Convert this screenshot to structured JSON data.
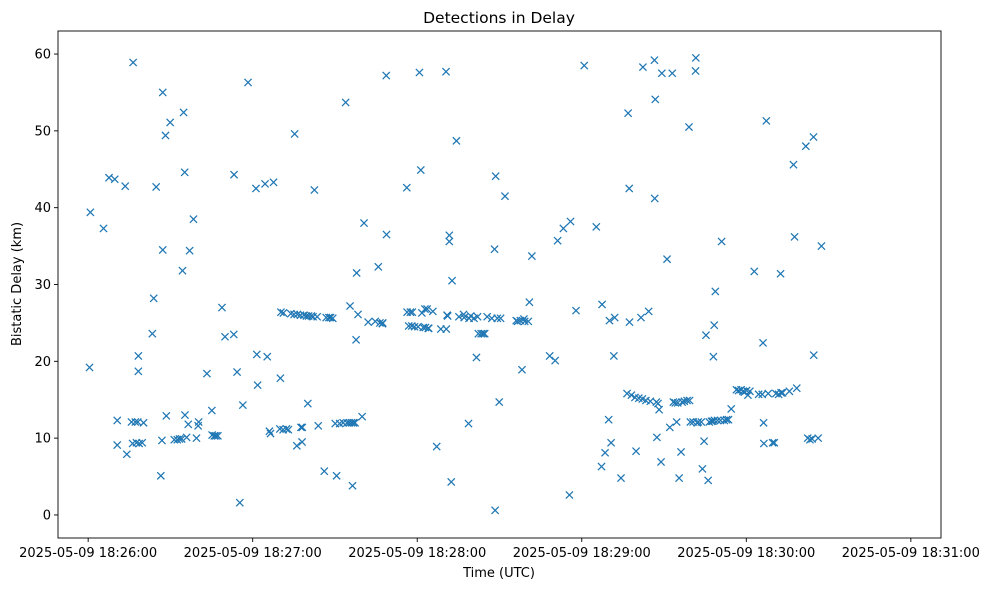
{
  "chart_data": {
    "type": "scatter",
    "title": "Detections in Delay",
    "xlabel": "Time (UTC)",
    "ylabel": "Bistatic Delay (km)",
    "x_unit": "seconds since 2025-05-09 18:26:00",
    "xlim": [
      -11,
      311
    ],
    "ylim": [
      -3,
      63
    ],
    "xticks": [
      {
        "value": 0,
        "label": "2025-05-09 18:26:00"
      },
      {
        "value": 60,
        "label": "2025-05-09 18:27:00"
      },
      {
        "value": 120,
        "label": "2025-05-09 18:28:00"
      },
      {
        "value": 180,
        "label": "2025-05-09 18:29:00"
      },
      {
        "value": 240,
        "label": "2025-05-09 18:30:00"
      },
      {
        "value": 300,
        "label": "2025-05-09 18:31:00"
      }
    ],
    "yticks": [
      {
        "value": 0,
        "label": "0"
      },
      {
        "value": 10,
        "label": "10"
      },
      {
        "value": 20,
        "label": "20"
      },
      {
        "value": 30,
        "label": "30"
      },
      {
        "value": 40,
        "label": "40"
      },
      {
        "value": 50,
        "label": "50"
      },
      {
        "value": 60,
        "label": "60"
      }
    ],
    "marker": "x",
    "color": "#1f77b4",
    "series": [
      {
        "name": "Detections",
        "points": [
          [
            0.8,
            39.4
          ],
          [
            0.5,
            19.2
          ],
          [
            5.6,
            37.3
          ],
          [
            7.6,
            43.9
          ],
          [
            9.7,
            43.7
          ],
          [
            10.6,
            12.3
          ],
          [
            10.6,
            9.1
          ],
          [
            13.5,
            42.8
          ],
          [
            14.1,
            7.9
          ],
          [
            15.8,
            12.1
          ],
          [
            16.2,
            9.3
          ],
          [
            16.4,
            58.9
          ],
          [
            17.2,
            12.1
          ],
          [
            17.6,
            9.4
          ],
          [
            18.1,
            12.1
          ],
          [
            18.3,
            20.7
          ],
          [
            18.3,
            18.7
          ],
          [
            18.6,
            9.3
          ],
          [
            19.7,
            9.4
          ],
          [
            20.2,
            12.0
          ],
          [
            23.4,
            23.6
          ],
          [
            23.9,
            28.2
          ],
          [
            24.8,
            42.7
          ],
          [
            26.5,
            5.1
          ],
          [
            26.9,
            9.7
          ],
          [
            27.2,
            34.5
          ],
          [
            27.2,
            55.0
          ],
          [
            28.2,
            49.4
          ],
          [
            28.5,
            12.9
          ],
          [
            29.9,
            51.1
          ],
          [
            31.4,
            9.8
          ],
          [
            32.5,
            9.8
          ],
          [
            33.3,
            9.9
          ],
          [
            34.1,
            9.9
          ],
          [
            34.4,
            31.8
          ],
          [
            34.8,
            52.4
          ],
          [
            35.2,
            44.6
          ],
          [
            35.3,
            13.0
          ],
          [
            35.9,
            10.1
          ],
          [
            36.5,
            11.8
          ],
          [
            37.0,
            34.4
          ],
          [
            38.4,
            38.5
          ],
          [
            39.5,
            10.0
          ],
          [
            40.1,
            11.6
          ],
          [
            40.3,
            12.1
          ],
          [
            43.3,
            18.4
          ],
          [
            45.1,
            13.6
          ],
          [
            45.2,
            10.4
          ],
          [
            46.0,
            10.3
          ],
          [
            46.6,
            10.3
          ],
          [
            47.3,
            10.3
          ],
          [
            48.8,
            27.0
          ],
          [
            49.9,
            23.2
          ],
          [
            53.1,
            23.5
          ],
          [
            53.2,
            44.3
          ],
          [
            54.3,
            18.6
          ],
          [
            55.3,
            1.6
          ],
          [
            56.4,
            14.3
          ],
          [
            58.3,
            56.3
          ],
          [
            61.2,
            42.5
          ],
          [
            61.5,
            20.9
          ],
          [
            61.8,
            16.9
          ],
          [
            64.5,
            43.1
          ],
          [
            65.3,
            20.6
          ],
          [
            66.1,
            10.9
          ],
          [
            66.5,
            10.6
          ],
          [
            67.6,
            43.3
          ],
          [
            69.9,
            11.2
          ],
          [
            72.3,
            11.2
          ],
          [
            70.1,
            17.8
          ],
          [
            70.3,
            26.4
          ],
          [
            71.1,
            11.1
          ],
          [
            71.2,
            26.3
          ],
          [
            73.0,
            11.1
          ],
          [
            73.9,
            26.2
          ],
          [
            75.1,
            26.1
          ],
          [
            75.3,
            49.6
          ],
          [
            76.1,
            9.0
          ],
          [
            76.3,
            26.1
          ],
          [
            77.4,
            26.0
          ],
          [
            77.6,
            11.4
          ],
          [
            78.0,
            9.5
          ],
          [
            78.1,
            11.4
          ],
          [
            78.7,
            26.0
          ],
          [
            79.6,
            25.9
          ],
          [
            80.1,
            14.5
          ],
          [
            80.4,
            25.9
          ],
          [
            81.4,
            25.9
          ],
          [
            82.0,
            25.8
          ],
          [
            82.5,
            42.3
          ],
          [
            83.5,
            25.8
          ],
          [
            83.9,
            11.6
          ],
          [
            86.1,
            5.7
          ],
          [
            86.8,
            25.7
          ],
          [
            87.8,
            25.7
          ],
          [
            88.4,
            25.7
          ],
          [
            89.2,
            25.6
          ],
          [
            90.1,
            11.9
          ],
          [
            90.6,
            5.1
          ],
          [
            91.7,
            11.9
          ],
          [
            93.0,
            12.0
          ],
          [
            93.9,
            53.7
          ],
          [
            94.4,
            12.0
          ],
          [
            95.2,
            12.0
          ],
          [
            95.5,
            27.2
          ],
          [
            96.0,
            12.0
          ],
          [
            96.4,
            3.8
          ],
          [
            96.7,
            12.0
          ],
          [
            97.3,
            12.0
          ],
          [
            97.7,
            22.8
          ],
          [
            97.9,
            31.5
          ],
          [
            98.4,
            26.1
          ],
          [
            99.9,
            12.8
          ],
          [
            100.6,
            38.0
          ],
          [
            102.1,
            25.1
          ],
          [
            104.7,
            25.2
          ],
          [
            105.8,
            32.3
          ],
          [
            106.4,
            25.0
          ],
          [
            107.3,
            24.9
          ],
          [
            107.4,
            25.0
          ],
          [
            108.7,
            57.2
          ],
          [
            108.8,
            36.5
          ],
          [
            116.2,
            42.6
          ],
          [
            116.3,
            26.4
          ],
          [
            116.9,
            24.6
          ],
          [
            117.5,
            26.4
          ],
          [
            118.0,
            24.6
          ],
          [
            118.2,
            26.4
          ],
          [
            119.0,
            24.5
          ],
          [
            120.3,
            24.5
          ],
          [
            120.8,
            57.6
          ],
          [
            121.3,
            44.9
          ],
          [
            121.7,
            26.3
          ],
          [
            122.2,
            24.4
          ],
          [
            122.8,
            26.8
          ],
          [
            123.0,
            24.4
          ],
          [
            123.6,
            26.8
          ],
          [
            124.0,
            24.3
          ],
          [
            124.2,
            24.3
          ],
          [
            125.7,
            26.5
          ],
          [
            127.1,
            8.9
          ],
          [
            128.6,
            24.2
          ],
          [
            130.5,
            57.7
          ],
          [
            130.6,
            24.2
          ],
          [
            130.9,
            26.0
          ],
          [
            131.1,
            25.9
          ],
          [
            131.7,
            36.4
          ],
          [
            131.7,
            35.6
          ],
          [
            132.7,
            30.5
          ],
          [
            132.4,
            4.3
          ],
          [
            134.3,
            48.7
          ],
          [
            135.2,
            25.8
          ],
          [
            136.9,
            26.1
          ],
          [
            137.1,
            25.7
          ],
          [
            138.7,
            11.9
          ],
          [
            138.9,
            25.6
          ],
          [
            139.5,
            25.9
          ],
          [
            140.7,
            25.6
          ],
          [
            141.6,
            20.5
          ],
          [
            142.0,
            25.8
          ],
          [
            142.3,
            23.6
          ],
          [
            143.3,
            23.6
          ],
          [
            144.0,
            23.6
          ],
          [
            144.6,
            23.6
          ],
          [
            145.5,
            25.8
          ],
          [
            147.2,
            25.6
          ],
          [
            158.9,
            25.5
          ],
          [
            148.2,
            34.6
          ],
          [
            148.4,
            0.6
          ],
          [
            148.6,
            44.1
          ],
          [
            149.2,
            25.6
          ],
          [
            149.9,
            14.7
          ],
          [
            150.4,
            25.6
          ],
          [
            152.0,
            41.5
          ],
          [
            156.1,
            25.3
          ],
          [
            156.6,
            25.2
          ],
          [
            157.6,
            25.3
          ],
          [
            158.2,
            18.9
          ],
          [
            159.2,
            25.2
          ],
          [
            160.5,
            25.2
          ],
          [
            160.9,
            27.7
          ],
          [
            161.8,
            33.7
          ],
          [
            168.3,
            20.7
          ],
          [
            170.3,
            20.1
          ],
          [
            171.2,
            35.7
          ],
          [
            173.3,
            37.3
          ],
          [
            175.5,
            2.6
          ],
          [
            175.9,
            38.2
          ],
          [
            177.9,
            26.6
          ],
          [
            180.9,
            58.5
          ],
          [
            185.3,
            37.5
          ],
          [
            187.4,
            27.4
          ],
          [
            187.2,
            6.3
          ],
          [
            188.5,
            8.1
          ],
          [
            189.8,
            12.4
          ],
          [
            190.1,
            25.3
          ],
          [
            190.7,
            9.4
          ],
          [
            191.7,
            20.7
          ],
          [
            192.0,
            25.7
          ],
          [
            194.3,
            4.8
          ],
          [
            196.5,
            15.8
          ],
          [
            196.9,
            52.3
          ],
          [
            197.3,
            42.5
          ],
          [
            197.4,
            25.1
          ],
          [
            198.1,
            15.6
          ],
          [
            199.4,
            15.3
          ],
          [
            199.8,
            8.3
          ],
          [
            200.8,
            15.2
          ],
          [
            201.6,
            25.7
          ],
          [
            202.1,
            15.1
          ],
          [
            202.3,
            58.3
          ],
          [
            203.4,
            14.9
          ],
          [
            204.4,
            26.5
          ],
          [
            205.0,
            14.8
          ],
          [
            206.5,
            59.2
          ],
          [
            206.6,
            41.2
          ],
          [
            206.8,
            54.1
          ],
          [
            207.2,
            14.7
          ],
          [
            207.4,
            10.1
          ],
          [
            207.8,
            14.5
          ],
          [
            208.2,
            13.7
          ],
          [
            208.9,
            6.9
          ],
          [
            209.2,
            57.5
          ],
          [
            211.1,
            33.3
          ],
          [
            212.1,
            11.4
          ],
          [
            213.0,
            57.5
          ],
          [
            213.4,
            14.7
          ],
          [
            214.1,
            14.6
          ],
          [
            214.6,
            12.1
          ],
          [
            215.0,
            14.6
          ],
          [
            215.5,
            4.8
          ],
          [
            216.2,
            8.2
          ],
          [
            216.6,
            14.7
          ],
          [
            217.4,
            14.8
          ],
          [
            218.4,
            14.9
          ],
          [
            219.1,
            50.5
          ],
          [
            219.3,
            14.9
          ],
          [
            219.6,
            12.1
          ],
          [
            220.6,
            12.1
          ],
          [
            221.5,
            57.8
          ],
          [
            221.6,
            59.5
          ],
          [
            222.1,
            12.0
          ],
          [
            222.5,
            12.1
          ],
          [
            223.6,
            12.1
          ],
          [
            224.0,
            6.0
          ],
          [
            224.6,
            9.6
          ],
          [
            225.3,
            23.4
          ],
          [
            226.1,
            4.5
          ],
          [
            226.5,
            12.1
          ],
          [
            227.3,
            12.2
          ],
          [
            227.8,
            12.2
          ],
          [
            228.0,
            20.6
          ],
          [
            228.3,
            24.7
          ],
          [
            228.4,
            12.3
          ],
          [
            228.7,
            29.1
          ],
          [
            229.5,
            12.3
          ],
          [
            230.6,
            12.3
          ],
          [
            231.0,
            35.6
          ],
          [
            232.0,
            12.3
          ],
          [
            232.8,
            12.4
          ],
          [
            233.5,
            12.4
          ],
          [
            234.5,
            13.8
          ],
          [
            236.4,
            16.3
          ],
          [
            237.2,
            16.2
          ],
          [
            238.1,
            16.3
          ],
          [
            238.8,
            16.1
          ],
          [
            239.3,
            16.0
          ],
          [
            240.1,
            16.2
          ],
          [
            240.6,
            15.6
          ],
          [
            241.3,
            16.1
          ],
          [
            242.9,
            31.7
          ],
          [
            244.5,
            15.7
          ],
          [
            245.8,
            15.7
          ],
          [
            246.1,
            22.4
          ],
          [
            246.3,
            12.0
          ],
          [
            246.4,
            9.3
          ],
          [
            247.3,
            51.3
          ],
          [
            248.0,
            15.8
          ],
          [
            249.6,
            9.4
          ],
          [
            250.2,
            9.4
          ],
          [
            250.8,
            15.8
          ],
          [
            251.8,
            15.7
          ],
          [
            252.5,
            31.4
          ],
          [
            252.7,
            15.9
          ],
          [
            253.2,
            15.9
          ],
          [
            255.7,
            16.1
          ],
          [
            257.2,
            45.6
          ],
          [
            257.6,
            36.2
          ],
          [
            258.4,
            16.5
          ],
          [
            261.7,
            48.0
          ],
          [
            262.4,
            10.0
          ],
          [
            263.2,
            9.8
          ],
          [
            264.0,
            9.9
          ],
          [
            264.5,
            49.2
          ],
          [
            264.6,
            20.8
          ],
          [
            266.2,
            10.0
          ],
          [
            267.4,
            35.0
          ]
        ]
      }
    ]
  }
}
